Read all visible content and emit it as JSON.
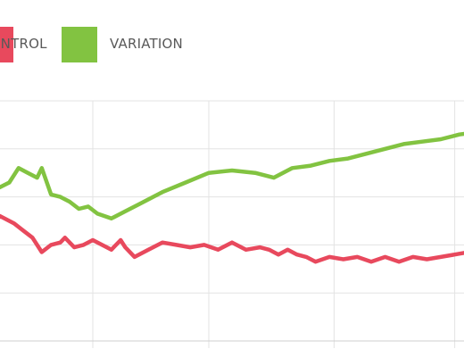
{
  "legend": [
    {
      "label": "CONTROL",
      "color": "#e8495d"
    },
    {
      "label": "VARIATION",
      "color": "#82c341"
    }
  ],
  "chart_data": {
    "type": "line",
    "grid": true,
    "legend_placement": "top-left",
    "xlim": [
      0,
      100
    ],
    "ylim": [
      0,
      100
    ],
    "x_gridlines": [
      20,
      45,
      72,
      98
    ],
    "y_gridlines": [
      20,
      40,
      60,
      80
    ],
    "series": [
      {
        "name": "CONTROL",
        "color": "#e8495d",
        "x": [
          -3,
          0,
          3,
          5,
          7,
          9,
          11,
          13,
          14,
          16,
          18,
          20,
          22,
          24,
          26,
          27,
          29,
          32,
          35,
          38,
          41,
          44,
          47,
          50,
          53,
          56,
          58,
          60,
          62,
          64,
          66,
          68,
          71,
          74,
          77,
          80,
          83,
          86,
          89,
          92,
          95,
          98,
          101
        ],
        "y": [
          45,
          52,
          49,
          46,
          43,
          37,
          40,
          41,
          43,
          39,
          40,
          42,
          40,
          38,
          42,
          39,
          35,
          38,
          41,
          40,
          39,
          40,
          38,
          41,
          38,
          39,
          38,
          36,
          38,
          36,
          35,
          33,
          35,
          34,
          35,
          33,
          35,
          33,
          35,
          34,
          35,
          36,
          37
        ]
      },
      {
        "name": "VARIATION",
        "color": "#82c341",
        "x": [
          -3,
          0,
          2,
          4,
          6,
          8,
          9,
          11,
          13,
          15,
          17,
          19,
          21,
          24,
          27,
          30,
          35,
          40,
          45,
          50,
          55,
          59,
          63,
          67,
          71,
          75,
          79,
          83,
          87,
          91,
          95,
          99,
          103
        ],
        "y": [
          68,
          64,
          66,
          72,
          70,
          68,
          72,
          61,
          60,
          58,
          55,
          56,
          53,
          51,
          54,
          57,
          62,
          66,
          70,
          71,
          70,
          68,
          72,
          73,
          75,
          76,
          78,
          80,
          82,
          83,
          84,
          86,
          87
        ]
      }
    ]
  }
}
